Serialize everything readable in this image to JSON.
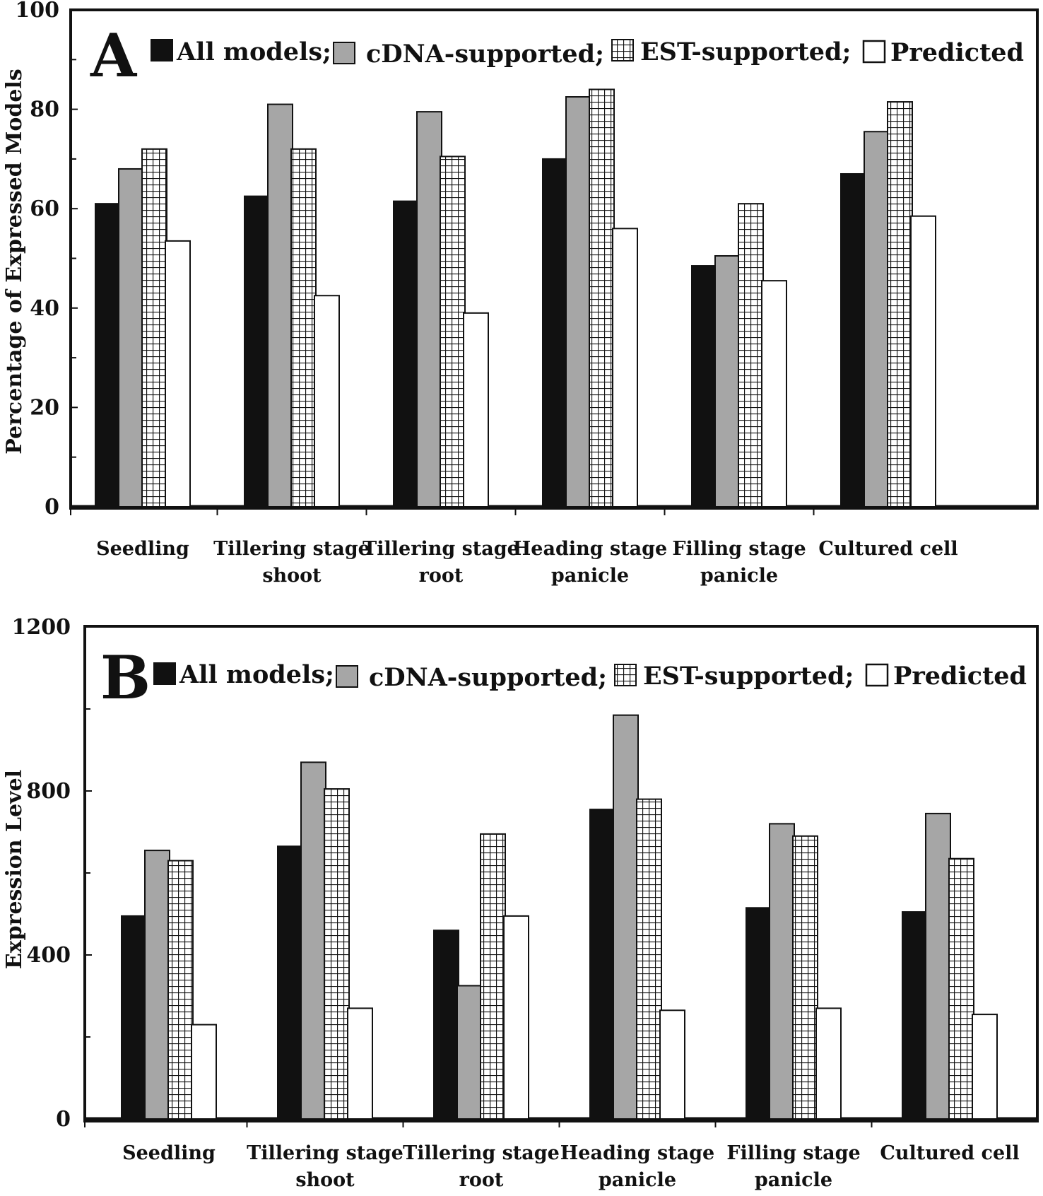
{
  "legend": [
    "All models;",
    "cDNA-supported;",
    "EST-supported;",
    "Predicted"
  ],
  "colors": {
    "all": "#111111",
    "cdna": "#a6a6a6",
    "est": "#ffffff",
    "predicted": "#ffffff",
    "axis": "#111111"
  },
  "chart_data": [
    {
      "type": "bar",
      "panel_label": "A",
      "ylabel": "Percentage of Expressed Models",
      "xlabel": "",
      "ylim": [
        0,
        100
      ],
      "yticks": [
        0,
        20,
        40,
        60,
        80,
        100
      ],
      "categories": [
        [
          "Seedling"
        ],
        [
          "Tillering stage",
          "shoot"
        ],
        [
          "Tillering stage",
          "root"
        ],
        [
          "Heading stage",
          "panicle"
        ],
        [
          "Filling stage",
          "panicle"
        ],
        [
          "Cultured cell"
        ]
      ],
      "series": [
        {
          "name": "All models",
          "values": [
            61,
            62.5,
            61.5,
            70,
            48.5,
            67
          ]
        },
        {
          "name": "cDNA-supported",
          "values": [
            68,
            81,
            79.5,
            82.5,
            50.5,
            75.5
          ]
        },
        {
          "name": "EST-supported",
          "values": [
            72,
            72,
            70.5,
            84,
            61,
            81.5
          ]
        },
        {
          "name": "Predicted",
          "values": [
            53.5,
            42.5,
            39,
            56,
            45.5,
            58.5
          ]
        }
      ],
      "grid": false,
      "legend_position": "top"
    },
    {
      "type": "bar",
      "panel_label": "B",
      "ylabel": "Expression Level",
      "xlabel": "",
      "ylim": [
        0,
        1200
      ],
      "yticks": [
        0,
        400,
        800,
        1200
      ],
      "categories": [
        [
          "Seedling"
        ],
        [
          "Tillering stage",
          "shoot"
        ],
        [
          "Tillering stage",
          "root"
        ],
        [
          "Heading stage",
          "panicle"
        ],
        [
          "Filling stage",
          "panicle"
        ],
        [
          "Cultured cell"
        ]
      ],
      "series": [
        {
          "name": "All models",
          "values": [
            495,
            665,
            460,
            755,
            515,
            505
          ]
        },
        {
          "name": "cDNA-supported",
          "values": [
            655,
            870,
            325,
            985,
            720,
            745
          ]
        },
        {
          "name": "EST-supported",
          "values": [
            630,
            805,
            695,
            780,
            690,
            635
          ]
        },
        {
          "name": "Predicted",
          "values": [
            230,
            270,
            495,
            265,
            270,
            255
          ]
        }
      ],
      "grid": false,
      "legend_position": "top"
    }
  ]
}
